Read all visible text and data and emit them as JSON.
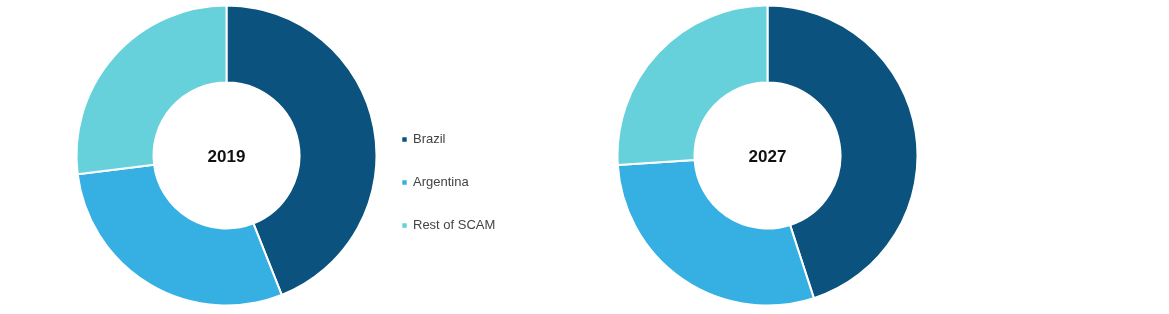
{
  "chart_data": [
    {
      "type": "donut",
      "title": "2019",
      "categories": [
        "Brazil",
        "Argentina",
        "Rest of SCAM"
      ],
      "values": [
        44,
        29,
        27
      ],
      "colors": [
        "#0b527e",
        "#36b0e3",
        "#66d1da"
      ],
      "legend": "right"
    },
    {
      "type": "donut",
      "title": "2027",
      "categories": [
        null,
        null,
        null
      ],
      "values": [
        45,
        29,
        26
      ],
      "colors": [
        "#0b527e",
        "#36b0e3",
        "#66d1da"
      ]
    }
  ]
}
